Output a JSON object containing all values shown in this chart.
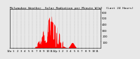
{
  "title": "Milwaukee Weather  Solar Radiation per Minute W/m2  (Last 24 Hours)",
  "bg_color": "#e8e8e8",
  "plot_bg_color": "#e8e8e8",
  "grid_color": "#aaaaaa",
  "fill_color": "#ff0000",
  "line_color": "#ff0000",
  "ylim": [
    0,
    650
  ],
  "yticks": [
    100,
    200,
    300,
    400,
    500,
    600
  ],
  "num_points": 1440,
  "x_tick_labels": [
    "12a",
    "1",
    "2",
    "3",
    "4",
    "5",
    "6",
    "7",
    "8",
    "9",
    "10",
    "11",
    "12p",
    "1",
    "2",
    "3",
    "4",
    "5",
    "6",
    "7",
    "8",
    "9",
    "10",
    "11"
  ],
  "tick_fontsize": 2.8,
  "title_fontsize": 3.2
}
